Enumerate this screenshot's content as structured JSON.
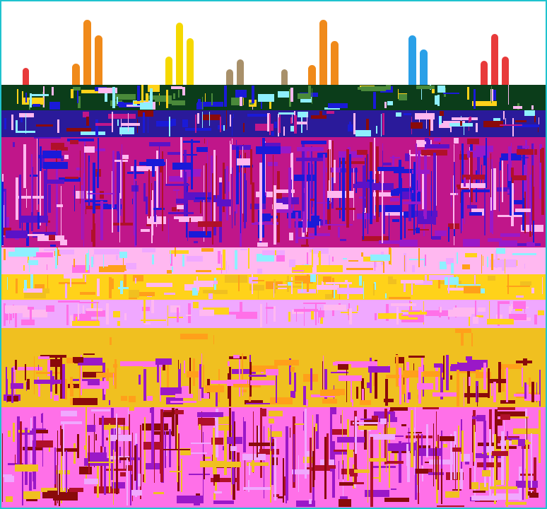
{
  "image": {
    "kind": "glitched photograph",
    "palette": {
      "sky": "#ffffff",
      "frame": "#1fc3cf",
      "hedge": "#0b3d1a",
      "hedge_light": "#4a8a3a",
      "band_blue": "#2a1a9a",
      "band_magenta": "#c0168a",
      "crimson": "#b0102a",
      "violet": "#5a12c8",
      "royal_blue": "#1a1ad8",
      "pink_light": "#ffb8f0",
      "cyan": "#8ef0ff",
      "lavender": "#f0a8ff",
      "yellow": "#ffd21a",
      "orange": "#ffa01a",
      "gold": "#f0c020",
      "maroon": "#8a0a0a",
      "pink": "#ff70e8",
      "purple": "#9a18c8",
      "flame_orange": "#f08a1a",
      "flame_yellow": "#f5d800",
      "flame_tan": "#a8906a",
      "flame_blue": "#2aa0e8",
      "flame_red": "#e83a3a"
    },
    "flame_groups": [
      {
        "color": "flame_red",
        "count": 1
      },
      {
        "color": "flame_orange",
        "count": 3
      },
      {
        "color": "flame_yellow",
        "count": 3
      },
      {
        "color": "flame_tan",
        "count": 2
      },
      {
        "color": "flame_tan",
        "count": 1
      },
      {
        "color": "flame_orange",
        "count": 3
      },
      {
        "color": "flame_blue",
        "count": 2
      },
      {
        "color": "flame_red",
        "count": 3
      }
    ],
    "bands": [
      {
        "name": "hedge-band",
        "base": "hedge",
        "noise": [
          "hedge_light",
          "cyan",
          "royal_blue",
          "pink_light",
          "yellow"
        ]
      },
      {
        "name": "blue-magenta-band",
        "base": "band_blue",
        "noise": [
          "band_magenta",
          "royal_blue",
          "pink_light",
          "maroon",
          "cyan"
        ]
      },
      {
        "name": "magenta-crimson-band",
        "base": "band_magenta",
        "noise": [
          "crimson",
          "violet",
          "royal_blue",
          "pink_light",
          "purple"
        ]
      },
      {
        "name": "pastel-band",
        "base": "pink_light",
        "noise": [
          "cyan",
          "lavender",
          "yellow",
          "orange",
          "pink"
        ]
      },
      {
        "name": "yellow-orange-band",
        "base": "yellow",
        "noise": [
          "orange",
          "cyan",
          "lavender",
          "gold",
          "pink_light"
        ]
      },
      {
        "name": "lavender-strip",
        "base": "lavender",
        "noise": [
          "pink",
          "pink_light",
          "yellow"
        ]
      },
      {
        "name": "gold-band",
        "base": "gold",
        "noise": [
          "orange"
        ]
      },
      {
        "name": "gold-maroon-band",
        "base": "gold",
        "noise": [
          "maroon",
          "pink",
          "orange",
          "purple"
        ]
      },
      {
        "name": "pink-maroon-band",
        "base": "pink",
        "noise": [
          "maroon",
          "gold",
          "purple",
          "lavender",
          "crimson"
        ]
      }
    ]
  }
}
